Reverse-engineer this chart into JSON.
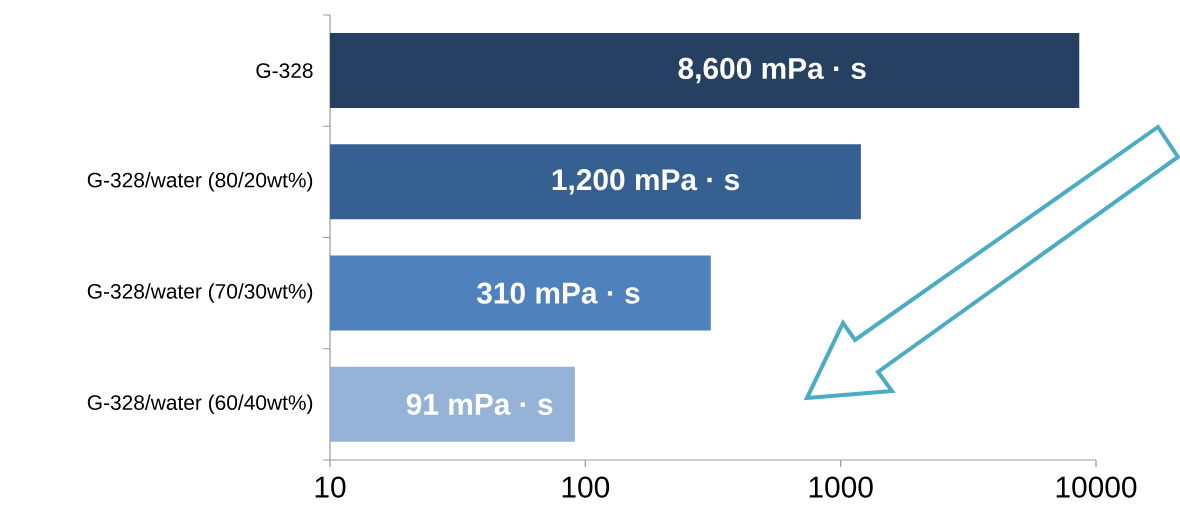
{
  "chart_data": {
    "type": "bar",
    "orientation": "horizontal",
    "log": "x",
    "categories": [
      "G-328",
      "G-328/water (80/20wt%)",
      "G-328/water (70/30wt%)",
      "G-328/water (60/40wt%)"
    ],
    "values": [
      8600,
      1200,
      310,
      91
    ],
    "colors": [
      "#264062",
      "#366092",
      "#4f81bd",
      "#95b3d7"
    ],
    "value_labels": [
      "8,600 mPa · s",
      "1,200 mPa · s",
      "310 mPa · s",
      "91 mPa · s"
    ],
    "xlim": [
      10,
      10000
    ],
    "xticks": [
      10,
      100,
      1000,
      10000
    ]
  }
}
